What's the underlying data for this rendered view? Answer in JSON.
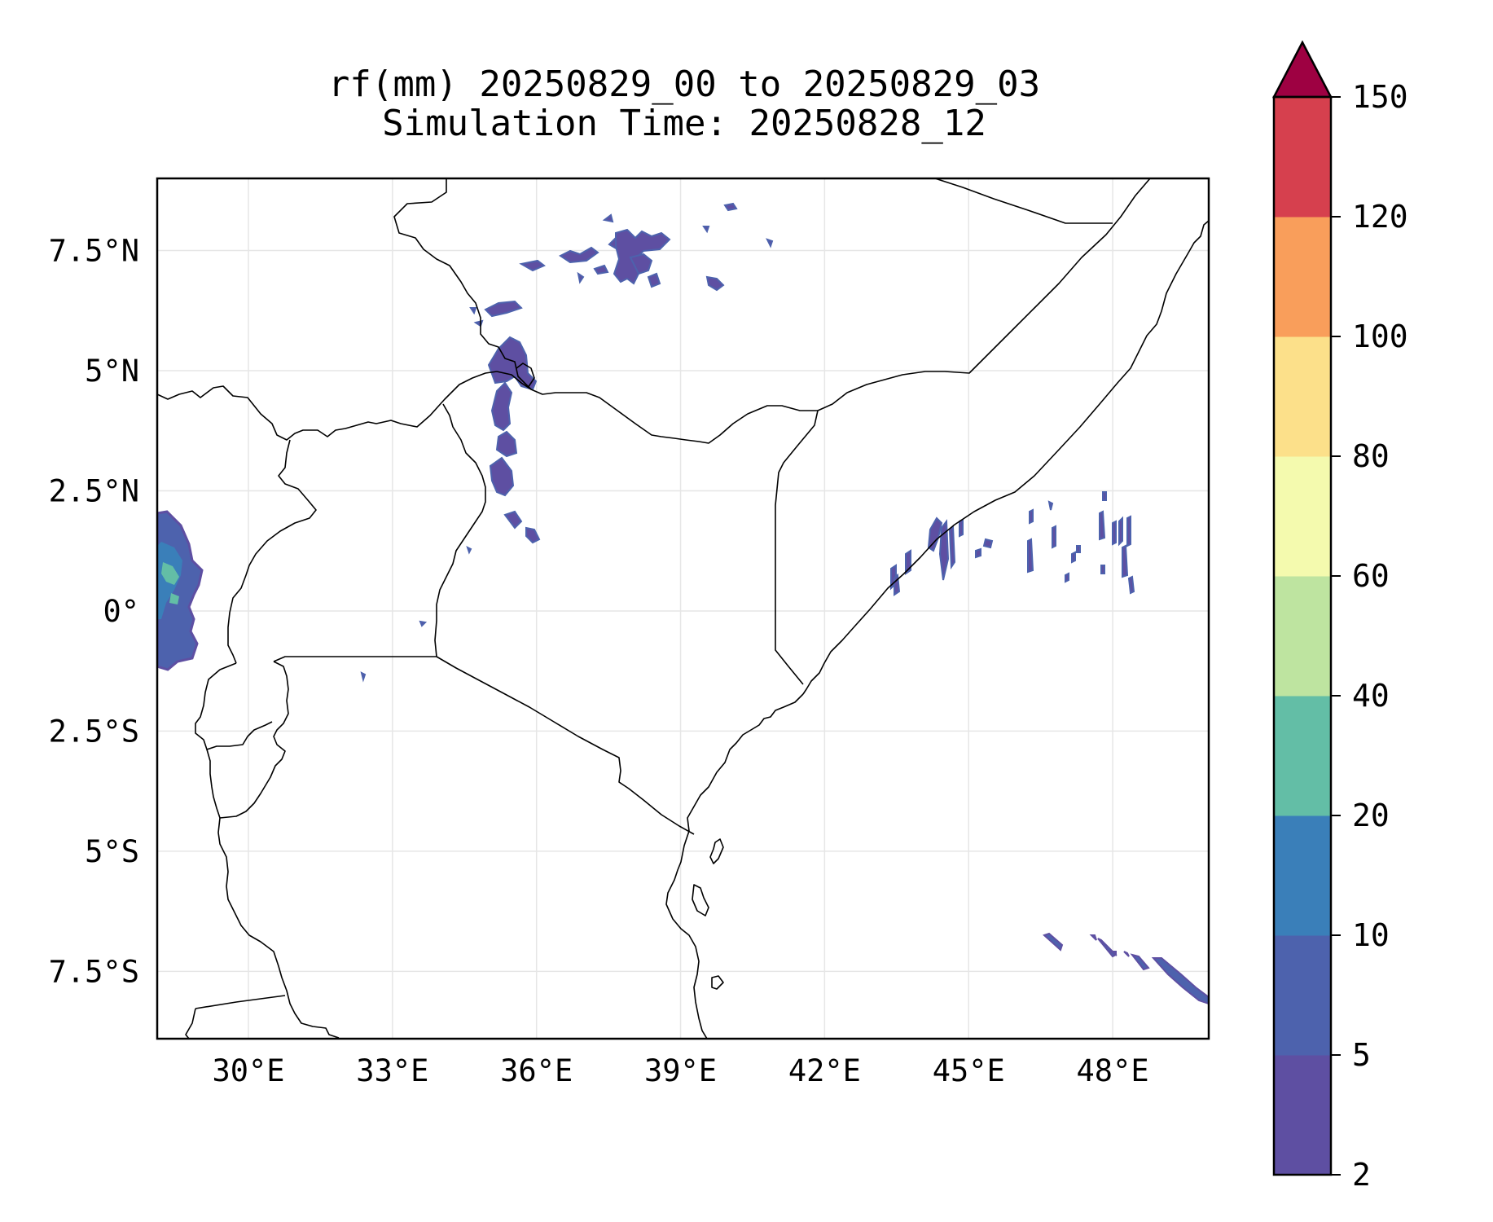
{
  "title_line1": "rf(mm) 20250829_00 to 20250829_03",
  "title_line2": "Simulation Time: 20250828_12",
  "map": {
    "lon_range": [
      28.1,
      50.0
    ],
    "lat_range": [
      -8.9,
      9.0
    ],
    "gridlines": true,
    "lon_ticks": [
      {
        "value": 30,
        "label": "30°E"
      },
      {
        "value": 33,
        "label": "33°E"
      },
      {
        "value": 36,
        "label": "36°E"
      },
      {
        "value": 39,
        "label": "39°E"
      },
      {
        "value": 42,
        "label": "42°E"
      },
      {
        "value": 45,
        "label": "45°E"
      },
      {
        "value": 48,
        "label": "48°E"
      }
    ],
    "lat_ticks": [
      {
        "value": 7.5,
        "label": "7.5°N"
      },
      {
        "value": 5,
        "label": "5°N"
      },
      {
        "value": 2.5,
        "label": "2.5°N"
      },
      {
        "value": 0,
        "label": "0°"
      },
      {
        "value": -2.5,
        "label": "2.5°S"
      },
      {
        "value": -5,
        "label": "5°S"
      },
      {
        "value": -7.5,
        "label": "7.5°S"
      }
    ]
  },
  "colorbar": {
    "levels": [
      "2",
      "5",
      "10",
      "20",
      "40",
      "60",
      "80",
      "100",
      "120",
      "150"
    ],
    "colors": [
      "#5e4fa2",
      "#4d62ad",
      "#3a7fb9",
      "#63bea6",
      "#bee4a0",
      "#f4faae",
      "#fce08a",
      "#f99e5b",
      "#d6404e"
    ],
    "extend_color": "#9e0142"
  },
  "rain_colors": {
    "light": "#5e4fa2",
    "medium": "#4d62ad",
    "blue": "#3a7fb9",
    "teal": "#63bea6",
    "green": "#bee4a0"
  }
}
